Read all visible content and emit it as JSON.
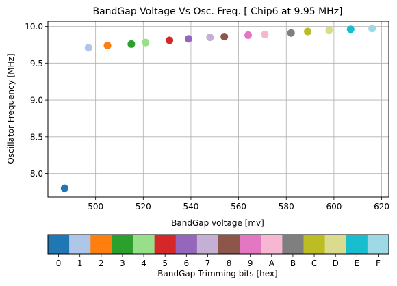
{
  "chart_data": [
    {
      "type": "scatter",
      "title": "BandGap Voltage Vs Osc. Freq. [ Chip6 at 9.95 MHz]",
      "xlabel": "BandGap voltage [mv]",
      "ylabel": "Oscillator Frequency [MHz]",
      "xlim": [
        480,
        623
      ],
      "ylim": [
        7.68,
        10.07
      ],
      "xticks": [
        500,
        520,
        540,
        560,
        580,
        600,
        620
      ],
      "yticks": [
        8.0,
        8.5,
        9.0,
        9.5,
        10.0
      ],
      "xtick_labels": [
        "500",
        "520",
        "540",
        "560",
        "580",
        "600",
        "620"
      ],
      "ytick_labels": [
        "8.0",
        "8.5",
        "9.0",
        "9.5",
        "10.0"
      ],
      "grid": true,
      "points": [
        {
          "code": "0",
          "x": 487,
          "y": 7.8,
          "color": "#1f77b4"
        },
        {
          "code": "1",
          "x": 497,
          "y": 9.71,
          "color": "#aec7e8"
        },
        {
          "code": "2",
          "x": 505,
          "y": 9.74,
          "color": "#ff7f0e"
        },
        {
          "code": "3",
          "x": 515,
          "y": 9.76,
          "color": "#2ca02c"
        },
        {
          "code": "4",
          "x": 521,
          "y": 9.78,
          "color": "#98df8a"
        },
        {
          "code": "5",
          "x": 531,
          "y": 9.81,
          "color": "#d62728"
        },
        {
          "code": "6",
          "x": 539,
          "y": 9.83,
          "color": "#9467bd"
        },
        {
          "code": "7",
          "x": 548,
          "y": 9.85,
          "color": "#c5b0d5"
        },
        {
          "code": "8",
          "x": 554,
          "y": 9.86,
          "color": "#8c564b"
        },
        {
          "code": "9",
          "x": 564,
          "y": 9.88,
          "color": "#e377c2"
        },
        {
          "code": "A",
          "x": 571,
          "y": 9.89,
          "color": "#f7b6d2"
        },
        {
          "code": "B",
          "x": 582,
          "y": 9.91,
          "color": "#7f7f7f"
        },
        {
          "code": "C",
          "x": 589,
          "y": 9.93,
          "color": "#bcbd22"
        },
        {
          "code": "D",
          "x": 598,
          "y": 9.95,
          "color": "#dbdb8d"
        },
        {
          "code": "E",
          "x": 607,
          "y": 9.96,
          "color": "#17becf"
        },
        {
          "code": "F",
          "x": 616,
          "y": 9.97,
          "color": "#9edae5"
        }
      ]
    },
    {
      "type": "colorbar",
      "xlabel": "BandGap Trimming bits [hex]",
      "categories": [
        "0",
        "1",
        "2",
        "3",
        "4",
        "5",
        "6",
        "7",
        "8",
        "9",
        "A",
        "B",
        "C",
        "D",
        "E",
        "F"
      ],
      "colors": [
        "#1f77b4",
        "#aec7e8",
        "#ff7f0e",
        "#2ca02c",
        "#98df8a",
        "#d62728",
        "#9467bd",
        "#c5b0d5",
        "#8c564b",
        "#e377c2",
        "#f7b6d2",
        "#7f7f7f",
        "#bcbd22",
        "#dbdb8d",
        "#17becf",
        "#9edae5"
      ]
    }
  ]
}
